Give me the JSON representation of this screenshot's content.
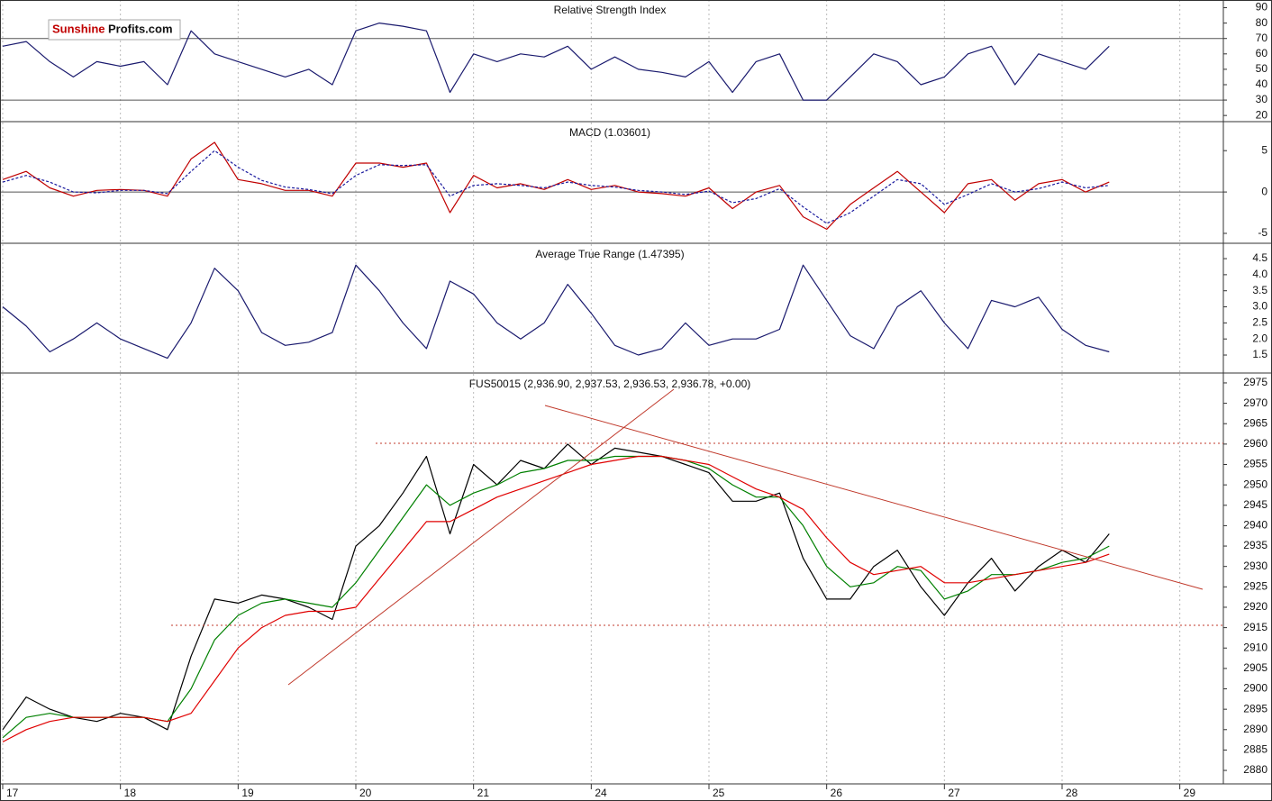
{
  "logo": {
    "part1": "Sunshine",
    "part2": "Profits.com"
  },
  "chart_data": [
    {
      "type": "line",
      "title": "Relative Strength Index",
      "x": [
        0,
        0.2,
        0.4,
        0.6,
        0.8,
        1,
        1.2,
        1.4,
        1.6,
        1.8,
        2,
        2.2,
        2.4,
        2.6,
        2.8,
        3,
        3.2,
        3.4,
        3.6,
        3.8,
        4,
        4.2,
        4.4,
        4.6,
        4.8,
        5,
        5.2,
        5.4,
        5.6,
        5.8,
        6,
        6.2,
        6.4,
        6.6,
        6.8,
        7,
        7.2,
        7.4,
        7.6,
        7.8,
        8,
        8.2,
        8.4,
        8.6,
        8.8,
        9,
        9.2,
        9.4
      ],
      "series": [
        {
          "color": "#1a1a6e",
          "values": [
            65,
            68,
            55,
            45,
            55,
            52,
            55,
            40,
            75,
            60,
            55,
            50,
            45,
            50,
            40,
            75,
            80,
            78,
            75,
            35,
            60,
            55,
            60,
            58,
            65,
            50,
            58,
            50,
            48,
            45,
            55,
            35,
            55,
            60,
            30,
            30,
            45,
            60,
            55,
            40,
            45,
            60,
            65,
            40,
            60,
            55,
            50,
            65
          ]
        }
      ],
      "hlines": [
        70,
        30
      ],
      "xlim": [
        -0.023,
        10.37
      ],
      "ylim": [
        16,
        95
      ],
      "yticks": [
        20,
        30,
        40,
        50,
        60,
        70,
        80,
        90
      ]
    },
    {
      "type": "line",
      "title": "MACD (1.03601)",
      "x": [
        0,
        0.2,
        0.4,
        0.6,
        0.8,
        1,
        1.2,
        1.4,
        1.6,
        1.8,
        2,
        2.2,
        2.4,
        2.6,
        2.8,
        3,
        3.2,
        3.4,
        3.6,
        3.8,
        4,
        4.2,
        4.4,
        4.6,
        4.8,
        5,
        5.2,
        5.4,
        5.6,
        5.8,
        6,
        6.2,
        6.4,
        6.6,
        6.8,
        7,
        7.2,
        7.4,
        7.6,
        7.8,
        8,
        8.2,
        8.4,
        8.6,
        8.8,
        9,
        9.2,
        9.4
      ],
      "series": [
        {
          "color": "#c00000",
          "values": [
            1.5,
            2.5,
            0.5,
            -0.5,
            0.2,
            0.3,
            0.2,
            -0.5,
            4,
            6,
            1.5,
            1,
            0.2,
            0.2,
            -0.5,
            3.5,
            3.5,
            3,
            3.5,
            -2.5,
            2,
            0.5,
            1,
            0.3,
            1.5,
            0.3,
            0.8,
            0,
            -0.2,
            -0.5,
            0.5,
            -2,
            0,
            0.8,
            -3,
            -4.5,
            -1.5,
            0.5,
            2.5,
            0,
            -2.5,
            1,
            1.5,
            -1,
            1,
            1.5,
            0,
            1.2
          ]
        },
        {
          "color": "#1a1a9e",
          "dashed": true,
          "values": [
            1.2,
            2,
            1.2,
            0,
            -0.1,
            0.2,
            0.2,
            -0.2,
            2.5,
            5,
            3,
            1.4,
            0.6,
            0.3,
            -0.2,
            2,
            3.3,
            3.2,
            3.3,
            -0.5,
            0.8,
            1,
            0.8,
            0.5,
            1.2,
            0.8,
            0.6,
            0.2,
            0,
            -0.3,
            0.1,
            -1.3,
            -0.8,
            0.4,
            -1.8,
            -3.8,
            -2.5,
            -0.5,
            1.5,
            1,
            -1.5,
            -0.3,
            1,
            0,
            0.4,
            1.2,
            0.5,
            0.8
          ]
        }
      ],
      "hlines": [
        0
      ],
      "xlim": [
        -0.023,
        10.37
      ],
      "ylim": [
        -6.2,
        8.4
      ],
      "yticks": [
        -5,
        0,
        5
      ]
    },
    {
      "type": "line",
      "title": "Average True Range (1.47395)",
      "x": [
        0,
        0.2,
        0.4,
        0.6,
        0.8,
        1,
        1.2,
        1.4,
        1.6,
        1.8,
        2,
        2.2,
        2.4,
        2.6,
        2.8,
        3,
        3.2,
        3.4,
        3.6,
        3.8,
        4,
        4.2,
        4.4,
        4.6,
        4.8,
        5,
        5.2,
        5.4,
        5.6,
        5.8,
        6,
        6.2,
        6.4,
        6.6,
        6.8,
        7,
        7.2,
        7.4,
        7.6,
        7.8,
        8,
        8.2,
        8.4,
        8.6,
        8.8,
        9,
        9.2,
        9.4
      ],
      "series": [
        {
          "color": "#1a1a6e",
          "values": [
            3,
            2.4,
            1.6,
            2,
            2.5,
            2,
            1.7,
            1.4,
            2.5,
            4.2,
            3.5,
            2.2,
            1.8,
            1.9,
            2.2,
            4.3,
            3.5,
            2.5,
            1.7,
            3.8,
            3.4,
            2.5,
            2,
            2.5,
            3.7,
            2.8,
            1.8,
            1.5,
            1.7,
            2.5,
            1.8,
            2,
            2,
            2.3,
            4.3,
            3.2,
            2.1,
            1.7,
            3,
            3.5,
            2.5,
            1.7,
            3.2,
            3,
            3.3,
            2.3,
            1.8,
            1.6
          ]
        }
      ],
      "xlim": [
        -0.023,
        10.37
      ],
      "ylim": [
        0.94,
        4.95
      ],
      "yticks": [
        1.5,
        {
          "value": 2,
          "label": "2.0"
        },
        2.5,
        {
          "value": 3,
          "label": "3.0"
        },
        3.5,
        {
          "value": 4,
          "label": "4.0"
        },
        4.5
      ]
    },
    {
      "type": "line",
      "title": "FUS50015 (2,936.90, 2,937.53, 2,936.53, 2,936.78, +0.00)",
      "x": [
        0,
        0.2,
        0.4,
        0.6,
        0.8,
        1,
        1.2,
        1.4,
        1.6,
        1.8,
        2,
        2.2,
        2.4,
        2.6,
        2.8,
        3,
        3.2,
        3.4,
        3.6,
        3.8,
        4,
        4.2,
        4.4,
        4.6,
        4.8,
        5,
        5.2,
        5.4,
        5.6,
        5.8,
        6,
        6.2,
        6.4,
        6.6,
        6.8,
        7,
        7.2,
        7.4,
        7.6,
        7.8,
        8,
        8.2,
        8.4,
        8.6,
        8.8,
        9,
        9.2,
        9.4
      ],
      "series": [
        {
          "color": "#000000",
          "values": [
            2890,
            2898,
            2895,
            2893,
            2892,
            2894,
            2893,
            2890,
            2908,
            2922,
            2921,
            2923,
            2922,
            2920,
            2917,
            2935,
            2940,
            2948,
            2957,
            2938,
            2955,
            2950,
            2956,
            2954,
            2960,
            2955,
            2959,
            2958,
            2957,
            2955,
            2953,
            2946,
            2946,
            2948,
            2932,
            2922,
            2922,
            2930,
            2934,
            2925,
            2918,
            2926,
            2932,
            2924,
            2930,
            2934,
            2931,
            2938
          ]
        },
        {
          "color": "#008000",
          "values": [
            2888,
            2893,
            2894,
            2893,
            2893,
            2893,
            2893,
            2892,
            2900,
            2912,
            2918,
            2921,
            2922,
            2921,
            2920,
            2926,
            2934,
            2942,
            2950,
            2945,
            2948,
            2950,
            2953,
            2954,
            2956,
            2956,
            2957,
            2957,
            2957,
            2956,
            2954,
            2950,
            2947,
            2947,
            2940,
            2930,
            2925,
            2926,
            2930,
            2929,
            2922,
            2924,
            2928,
            2928,
            2929,
            2931,
            2932,
            2935
          ]
        },
        {
          "color": "#e00000",
          "values": [
            2887,
            2890,
            2892,
            2893,
            2893,
            2893,
            2893,
            2892,
            2894,
            2902,
            2910,
            2915,
            2918,
            2919,
            2919,
            2920,
            2927,
            2934,
            2941,
            2941,
            2944,
            2947,
            2949,
            2951,
            2953,
            2955,
            2956,
            2957,
            2957,
            2956,
            2955,
            2952,
            2949,
            2947,
            2944,
            2937,
            2931,
            2928,
            2929,
            2930,
            2926,
            2926,
            2927,
            2928,
            2929,
            2930,
            2931,
            2933
          ]
        }
      ],
      "xlim": [
        -0.023,
        10.37
      ],
      "ylim": [
        2876.7,
        2977.2
      ],
      "yticks": [
        2880,
        2885,
        2890,
        2895,
        2900,
        2905,
        2910,
        2915,
        2920,
        2925,
        2930,
        2935,
        2940,
        2945,
        2950,
        2955,
        2960,
        2965,
        2970,
        2975
      ],
      "xticks": [
        {
          "value": 0,
          "label": "17"
        },
        {
          "value": 1,
          "label": "18"
        },
        {
          "value": 2,
          "label": "19"
        },
        {
          "value": 3,
          "label": "20"
        },
        {
          "value": 4,
          "label": "21"
        },
        {
          "value": 5,
          "label": "24"
        },
        {
          "value": 6,
          "label": "25"
        },
        {
          "value": 7,
          "label": "26"
        },
        {
          "value": 8,
          "label": "27"
        },
        {
          "value": 9,
          "label": "28"
        },
        {
          "value": 10,
          "label": "29"
        }
      ]
    }
  ]
}
